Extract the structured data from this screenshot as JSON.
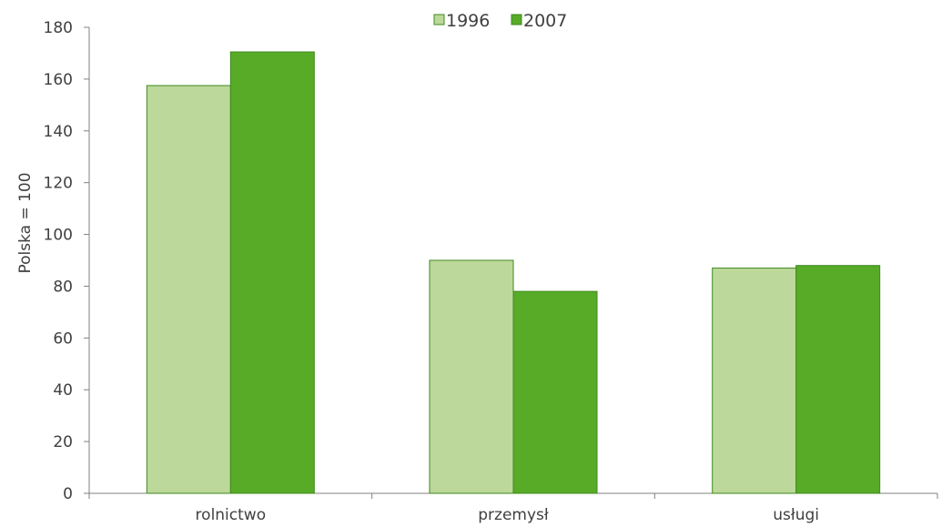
{
  "chart_data": {
    "type": "bar",
    "categories": [
      "rolnictwo",
      "przemysł",
      "usługi"
    ],
    "series": [
      {
        "name": "1996",
        "values": [
          157.5,
          90,
          87
        ],
        "color": "#bcd89a"
      },
      {
        "name": "2007",
        "values": [
          170.5,
          78,
          88
        ],
        "color": "#57ab27"
      }
    ],
    "bar_border_color": "#3f8a1e",
    "title": "",
    "xlabel": "",
    "ylabel": "Polska = 100",
    "ylim": [
      0,
      180
    ],
    "yticks": [
      "0",
      "20",
      "40",
      "60",
      "80",
      "100",
      "120",
      "140",
      "160",
      "180"
    ],
    "grid": false,
    "legend_position": "top-center"
  }
}
